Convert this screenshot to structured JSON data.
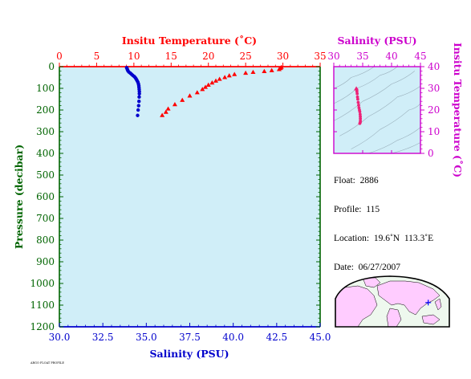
{
  "info": {
    "float": "Float:  2886",
    "profile": "Profile:  115",
    "location": "Location:  19.6˚N  113.3˚E",
    "date": "Date:  06/27/2007"
  },
  "footnote": "ARGO FLOAT PROFILE",
  "colors": {
    "background": "#d0eef8",
    "temperature": "#ff0000",
    "salinity": "#0000cc",
    "pressure_axis": "#006400",
    "ts_axis": "#cc00cc",
    "ts_points": "#ee2277",
    "map_land": "#ffccff",
    "map_ocean": "#eef8ee"
  },
  "chart_data": [
    {
      "type": "scatter",
      "panel": "profile",
      "xlabel": "Salinity (PSU)",
      "x2label": "Insitu Temperature (˚C)",
      "ylabel": "Pressure (decibar)",
      "salinity_lim": [
        30.0,
        45.0
      ],
      "salinity_ticks": [
        "30.0",
        "32.5",
        "35.0",
        "37.5",
        "40.0",
        "42.5",
        "45.0"
      ],
      "temperature_lim": [
        0,
        35
      ],
      "temperature_ticks": [
        "0",
        "5",
        "10",
        "15",
        "20",
        "25",
        "30",
        "35"
      ],
      "pressure_lim": [
        0,
        1200
      ],
      "pressure_ticks": [
        "0",
        "100",
        "200",
        "300",
        "400",
        "500",
        "600",
        "700",
        "800",
        "900",
        "1000",
        "1100",
        "1200"
      ],
      "y_inverted": true,
      "series": [
        {
          "marker": "triangle",
          "color": "#ff0000",
          "points": [
            [
              29.8,
              3
            ],
            [
              29.7,
              8
            ],
            [
              29.5,
              13
            ],
            [
              28.5,
              18
            ],
            [
              27.5,
              22
            ],
            [
              26.0,
              26
            ],
            [
              25.0,
              30
            ],
            [
              23.5,
              36
            ],
            [
              22.8,
              42
            ],
            [
              22.2,
              50
            ],
            [
              21.5,
              58
            ],
            [
              21.0,
              66
            ],
            [
              20.5,
              75
            ],
            [
              20.0,
              85
            ],
            [
              19.6,
              95
            ],
            [
              19.2,
              105
            ],
            [
              18.5,
              120
            ],
            [
              17.5,
              135
            ],
            [
              16.5,
              155
            ],
            [
              15.5,
              175
            ],
            [
              14.6,
              195
            ],
            [
              14.3,
              210
            ],
            [
              13.8,
              225
            ]
          ]
        },
        {
          "marker": "dot",
          "color": "#0000cc",
          "points": [
            [
              33.87,
              5
            ],
            [
              33.9,
              10
            ],
            [
              33.92,
              15
            ],
            [
              33.95,
              20
            ],
            [
              34.0,
              25
            ],
            [
              34.08,
              30
            ],
            [
              34.15,
              35
            ],
            [
              34.22,
              40
            ],
            [
              34.3,
              45
            ],
            [
              34.36,
              50
            ],
            [
              34.4,
              55
            ],
            [
              34.44,
              60
            ],
            [
              34.48,
              66
            ],
            [
              34.52,
              72
            ],
            [
              34.55,
              80
            ],
            [
              34.57,
              88
            ],
            [
              34.58,
              96
            ],
            [
              34.59,
              105
            ],
            [
              34.6,
              115
            ],
            [
              34.6,
              125
            ],
            [
              34.59,
              140
            ],
            [
              34.58,
              160
            ],
            [
              34.56,
              180
            ],
            [
              34.53,
              200
            ],
            [
              34.5,
              225
            ]
          ]
        }
      ]
    },
    {
      "type": "scatter",
      "panel": "ts-diagram",
      "xlabel": "Salinity (PSU)",
      "ylabel": "Insitu Temperature (˚C)",
      "xlim": [
        30,
        45
      ],
      "x_ticks": [
        "30",
        "35",
        "40",
        "45"
      ],
      "ylim": [
        0,
        40
      ],
      "y_ticks": [
        "0",
        "10",
        "20",
        "30",
        "40"
      ],
      "points": [
        [
          33.9,
          29.8
        ],
        [
          33.95,
          29.5
        ],
        [
          34.0,
          28.5
        ],
        [
          34.05,
          27.5
        ],
        [
          34.1,
          26.0
        ],
        [
          34.15,
          25.0
        ],
        [
          34.22,
          23.5
        ],
        [
          34.3,
          22.2
        ],
        [
          34.36,
          21.0
        ],
        [
          34.44,
          20.0
        ],
        [
          34.5,
          19.2
        ],
        [
          34.56,
          18.0
        ],
        [
          34.59,
          17.0
        ],
        [
          34.6,
          16.0
        ],
        [
          34.6,
          15.0
        ],
        [
          34.58,
          14.3
        ],
        [
          34.5,
          13.8
        ]
      ]
    }
  ],
  "map": {
    "marker_location": [
      113.3,
      19.6
    ]
  }
}
